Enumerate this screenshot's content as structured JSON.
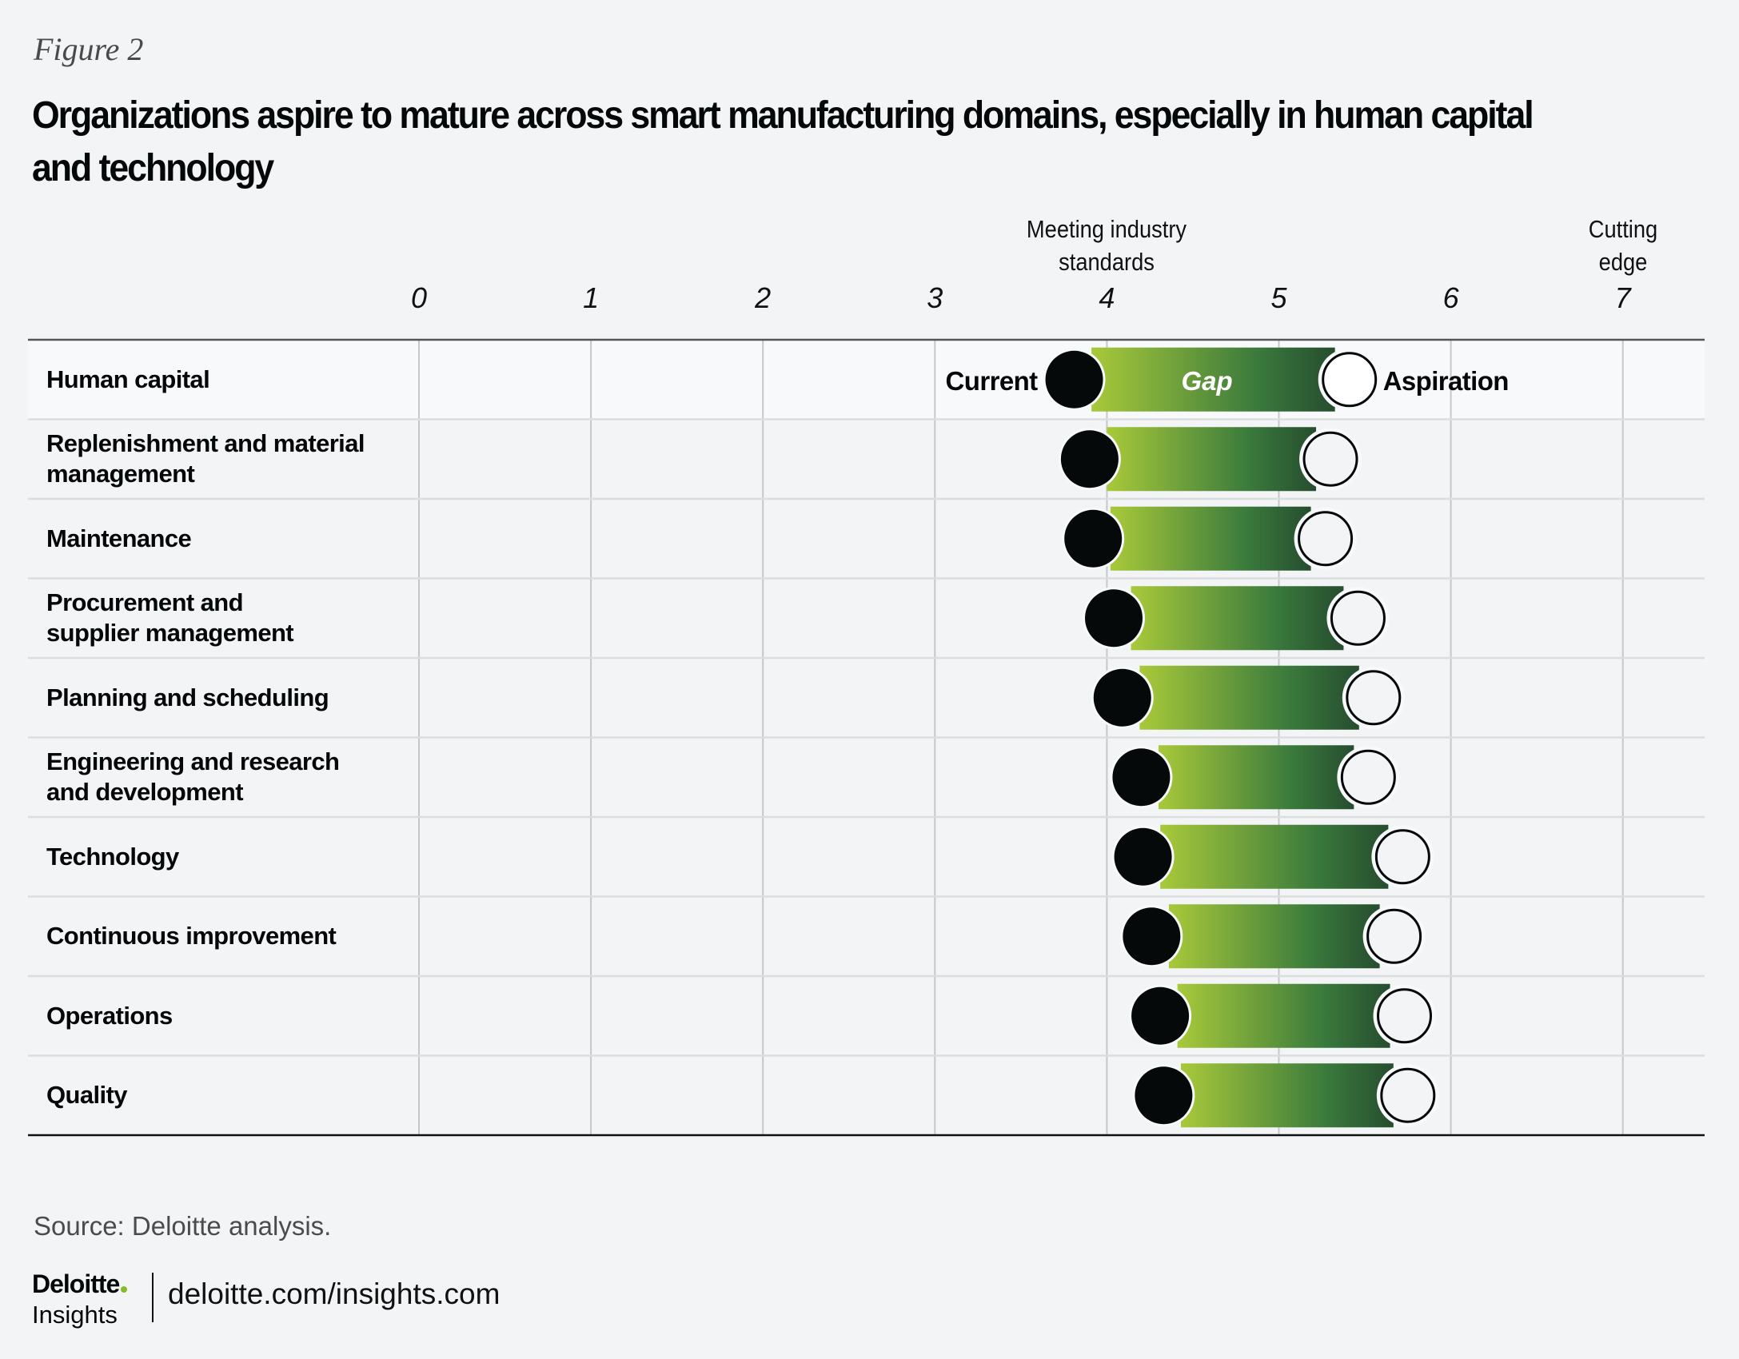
{
  "header": {
    "figure_label": "Figure 2",
    "title": "Organizations aspire to mature across smart manufacturing domains, especially in human capital and technology"
  },
  "chart_data": {
    "type": "dumbbell",
    "title": "Organizations aspire to mature across smart manufacturing domains, especially in human capital and technology",
    "xlabel": "",
    "ylabel": "",
    "xlim": [
      0,
      7
    ],
    "ticks": [
      "0",
      "1",
      "2",
      "3",
      "4",
      "5",
      "6",
      "7"
    ],
    "tick_values": [
      0,
      1,
      2,
      3,
      4,
      5,
      6,
      7
    ],
    "axis_annotations": [
      {
        "value": 4,
        "text_line1": "Meeting industry",
        "text_line2": "standards"
      },
      {
        "value": 7,
        "text_line1": "Cutting",
        "text_line2": "edge"
      }
    ],
    "grid": true,
    "legend": {
      "current": "Current",
      "gap": "Gap",
      "aspiration": "Aspiration",
      "placement": "inline-first-row"
    },
    "categories": [
      "Human capital",
      "Replenishment and material management",
      "Maintenance",
      "Procurement and supplier management",
      "Planning and scheduling",
      "Engineering and research and development",
      "Technology",
      "Continuous improvement",
      "Operations",
      "Quality"
    ],
    "category_lines": [
      [
        "Human capital"
      ],
      [
        "Replenishment and material",
        "management"
      ],
      [
        "Maintenance"
      ],
      [
        "Procurement and",
        "supplier management"
      ],
      [
        "Planning and scheduling"
      ],
      [
        "Engineering and research",
        "and development"
      ],
      [
        "Technology"
      ],
      [
        "Continuous improvement"
      ],
      [
        "Operations"
      ],
      [
        "Quality"
      ]
    ],
    "series": [
      {
        "name": "Current",
        "values": [
          3.81,
          3.9,
          3.92,
          4.04,
          4.09,
          4.2,
          4.21,
          4.26,
          4.31,
          4.33
        ]
      },
      {
        "name": "Aspiration",
        "values": [
          5.41,
          5.3,
          5.27,
          5.46,
          5.55,
          5.52,
          5.72,
          5.67,
          5.73,
          5.75
        ]
      }
    ],
    "colors": {
      "current_dot": "#05090a",
      "aspiration_dot": "#f3f4f6",
      "gap_start": "#a8c93a",
      "gap_mid": "#3a7a3c",
      "gap_end": "#264d2f",
      "highlight_row": "#f8f9fa"
    }
  },
  "footer": {
    "source": "Source: Deloitte analysis.",
    "logo_name": "Deloitte",
    "logo_sub": "Insights",
    "url": "deloitte.com/insights.com"
  }
}
